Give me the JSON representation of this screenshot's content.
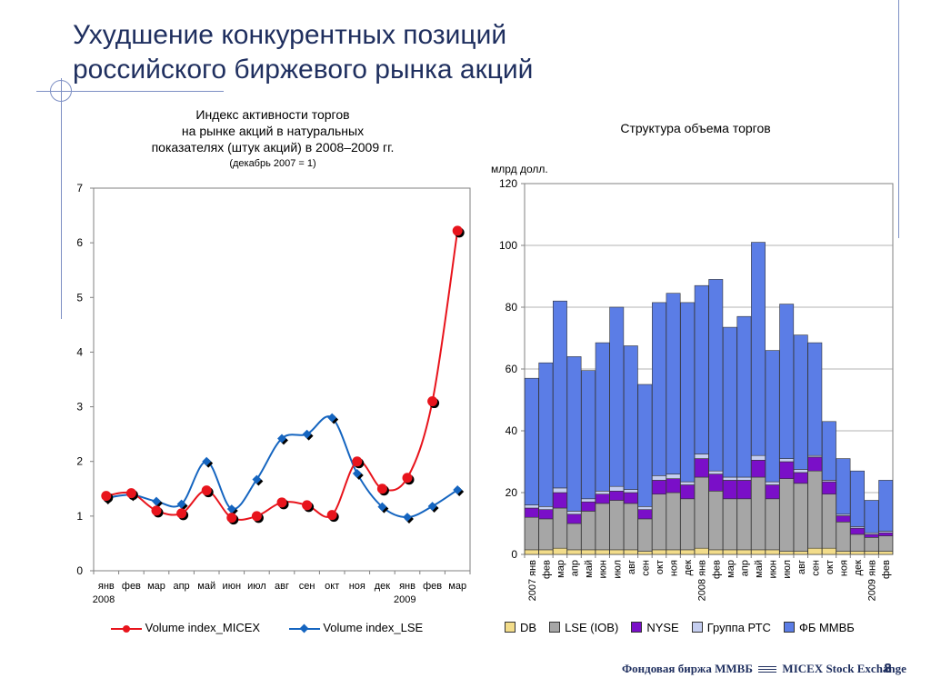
{
  "slide": {
    "title_line1": "Ухудшение конкурентных позиций",
    "title_line2": "российского биржевого рынка акций",
    "page_number": "8",
    "footer_left": "Фондовая биржа ММВБ",
    "footer_right": "MICEX Stock Exchange"
  },
  "chart_data": [
    {
      "type": "line",
      "title_lines": [
        "Индекс активности торгов",
        "на рынке акций в натуральных",
        "показателях (штук акций) в 2008–2009 гг."
      ],
      "subtitle": "(декабрь 2007 = 1)",
      "categories": [
        "янв",
        "фев",
        "мар",
        "апр",
        "май",
        "июн",
        "июл",
        "авг",
        "сен",
        "окт",
        "ноя",
        "дек",
        "янв",
        "фев",
        "мар"
      ],
      "year_labels": [
        "2008",
        "2009"
      ],
      "ylim": [
        0,
        7
      ],
      "yticks": [
        0,
        1,
        2,
        3,
        4,
        5,
        6,
        7
      ],
      "series": [
        {
          "name": "Volume index_MICEX",
          "color": "#e8141c",
          "values": [
            1.37,
            1.42,
            1.1,
            1.05,
            1.47,
            0.97,
            1.0,
            1.25,
            1.2,
            1.02,
            2.0,
            1.5,
            1.7,
            3.1,
            6.22
          ]
        },
        {
          "name": "Volume index_LSE",
          "color": "#1565c0",
          "values": [
            1.33,
            1.39,
            1.27,
            1.22,
            2.0,
            1.13,
            1.67,
            2.42,
            2.5,
            2.8,
            1.78,
            1.17,
            0.98,
            1.18,
            1.48
          ]
        }
      ],
      "grid": false
    },
    {
      "type": "bar",
      "stacked": true,
      "title": "Структура объема торгов",
      "ylabel": "млрд долл.",
      "ylim": [
        0,
        120
      ],
      "yticks": [
        0,
        20,
        40,
        60,
        80,
        100,
        120
      ],
      "categories": [
        "2007 янв",
        "фев",
        "мар",
        "апр",
        "май",
        "июн",
        "июл",
        "авг",
        "сен",
        "окт",
        "ноя",
        "дек",
        "2008 янв",
        "фев",
        "мар",
        "апр",
        "май",
        "июн",
        "июл",
        "авг",
        "сен",
        "окт",
        "ноя",
        "дек",
        "2009 янв",
        "фев"
      ],
      "series": [
        {
          "name": "DB",
          "color": "#f2dc8a",
          "values": [
            1.5,
            1.5,
            2,
            1.5,
            1.5,
            1.5,
            1.5,
            1.5,
            1,
            1.5,
            1.5,
            1.5,
            2,
            1.5,
            1.5,
            1.5,
            1.5,
            1.5,
            1,
            1,
            2,
            2,
            1,
            1,
            1,
            1
          ]
        },
        {
          "name": "LSE (IOB)",
          "color": "#a6a6a6",
          "values": [
            10.5,
            10,
            13,
            8.5,
            12.5,
            15,
            16,
            15,
            10.5,
            18,
            18.5,
            16.5,
            23,
            19,
            16.5,
            16.5,
            23.5,
            16.5,
            23.5,
            22,
            25,
            17.5,
            9.5,
            5.5,
            4.5,
            5
          ]
        },
        {
          "name": "NYSE",
          "color": "#7a0fc8",
          "values": [
            3,
            3,
            5,
            3,
            3,
            3,
            3,
            3.5,
            3,
            4.5,
            4.5,
            4.5,
            6,
            5.5,
            6,
            6,
            5.5,
            4.5,
            5.5,
            3.5,
            4.5,
            4,
            2,
            2,
            1,
            1
          ]
        },
        {
          "name": "Группа РТС",
          "color": "#c5cef0",
          "values": [
            1,
            1,
            1.5,
            1,
            1,
            1,
            1.5,
            1,
            1,
            1.5,
            1.5,
            1,
            1.5,
            1,
            1,
            1,
            1.5,
            1,
            1,
            1,
            0.5,
            0.5,
            0.5,
            0.5,
            0.5,
            0.5
          ]
        },
        {
          "name": "ФБ ММВБ",
          "color": "#5b7de6",
          "values": [
            41,
            46.5,
            60.5,
            50,
            41.5,
            48,
            58,
            46.5,
            39.5,
            56,
            58.5,
            58,
            54.5,
            62,
            48.5,
            52,
            69,
            42.5,
            50,
            43.5,
            36.5,
            19,
            18,
            18,
            10.5,
            16.5
          ]
        }
      ],
      "grid": true
    }
  ]
}
